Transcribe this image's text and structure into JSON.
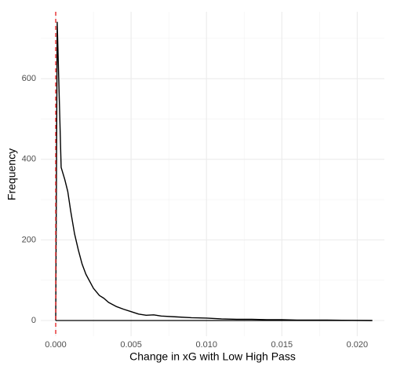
{
  "chart_data": {
    "type": "line",
    "x_label": "Change in xG with Low High Pass",
    "y_label": "Frequency",
    "x": [
      0,
      0.0001,
      0.0002,
      0.00036,
      0.0006,
      0.0008,
      0.001,
      0.00125,
      0.0015,
      0.00175,
      0.002,
      0.0025,
      0.0029,
      0.0032,
      0.0035,
      0.004,
      0.0045,
      0.005,
      0.0055,
      0.006,
      0.0065,
      0.007,
      0.008,
      0.009,
      0.01,
      0.011,
      0.012,
      0.013,
      0.014,
      0.015,
      0.016,
      0.017,
      0.018,
      0.019,
      0.021
    ],
    "series": [
      {
        "color": "#000000",
        "values": [
          0,
          740,
          600,
          380,
          350,
          320,
          270,
          215,
          175,
          140,
          115,
          80,
          62,
          55,
          45,
          35,
          28,
          22,
          16,
          13,
          14,
          11,
          9,
          7,
          6,
          4,
          3,
          3,
          2,
          2,
          1,
          1,
          1,
          0.5,
          0
        ]
      }
    ],
    "hline": 0,
    "hline_color": "#000000",
    "vline": 0,
    "vline_color": "#e41a1c",
    "xlim": [
      -0.00099,
      0.0218
    ],
    "ylim": [
      -39,
      766
    ],
    "xticks": [
      {
        "value": 0,
        "label": "0.000"
      },
      {
        "value": 0.005,
        "label": "0.005"
      },
      {
        "value": 0.01,
        "label": "0.010"
      },
      {
        "value": 0.015,
        "label": "0.015"
      },
      {
        "value": 0.02,
        "label": "0.020"
      }
    ],
    "yticks": [
      0,
      200,
      400,
      600
    ],
    "xminor": [
      0.0025,
      0.0075,
      0.0125,
      0.0175
    ],
    "yminor": [
      100,
      300,
      500,
      700
    ],
    "grid": true
  }
}
